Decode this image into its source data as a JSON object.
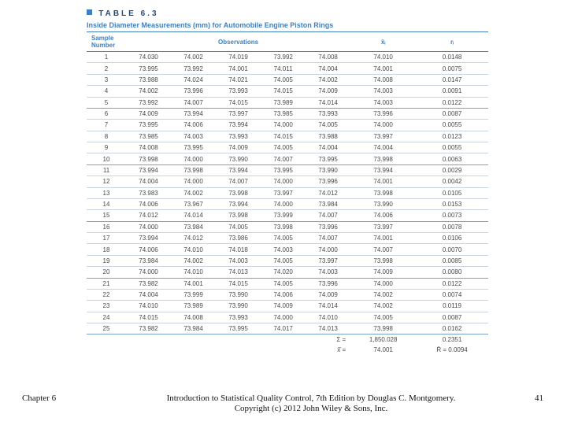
{
  "table": {
    "id": "TABLE 6.3",
    "caption": "Inside Diameter Measurements (mm) for Automobile Engine Piston Rings",
    "headers": {
      "sample": "Sample\nNumber",
      "obs": "Observations",
      "xbar": "x̄ᵢ",
      "r": "rᵢ"
    },
    "rows": [
      [
        1,
        "74.030",
        "74.002",
        "74.019",
        "73.992",
        "74.008",
        "74.010",
        "0.0148"
      ],
      [
        2,
        "73.995",
        "73.992",
        "74.001",
        "74.011",
        "74.004",
        "74.001",
        "0.0075"
      ],
      [
        3,
        "73.988",
        "74.024",
        "74.021",
        "74.005",
        "74.002",
        "74.008",
        "0.0147"
      ],
      [
        4,
        "74.002",
        "73.996",
        "73.993",
        "74.015",
        "74.009",
        "74.003",
        "0.0091"
      ],
      [
        5,
        "73.992",
        "74.007",
        "74.015",
        "73.989",
        "74.014",
        "74.003",
        "0.0122"
      ],
      [
        6,
        "74.009",
        "73.994",
        "73.997",
        "73.985",
        "73.993",
        "73.996",
        "0.0087"
      ],
      [
        7,
        "73.995",
        "74.006",
        "73.994",
        "74.000",
        "74.005",
        "74.000",
        "0.0055"
      ],
      [
        8,
        "73.985",
        "74.003",
        "73.993",
        "74.015",
        "73.988",
        "73.997",
        "0.0123"
      ],
      [
        9,
        "74.008",
        "73.995",
        "74.009",
        "74.005",
        "74.004",
        "74.004",
        "0.0055"
      ],
      [
        10,
        "73.998",
        "74.000",
        "73.990",
        "74.007",
        "73.995",
        "73.998",
        "0.0063"
      ],
      [
        11,
        "73.994",
        "73.998",
        "73.994",
        "73.995",
        "73.990",
        "73.994",
        "0.0029"
      ],
      [
        12,
        "74.004",
        "74.000",
        "74.007",
        "74.000",
        "73.996",
        "74.001",
        "0.0042"
      ],
      [
        13,
        "73.983",
        "74.002",
        "73.998",
        "73.997",
        "74.012",
        "73.998",
        "0.0105"
      ],
      [
        14,
        "74.006",
        "73.967",
        "73.994",
        "74.000",
        "73.984",
        "73.990",
        "0.0153"
      ],
      [
        15,
        "74.012",
        "74.014",
        "73.998",
        "73.999",
        "74.007",
        "74.006",
        "0.0073"
      ],
      [
        16,
        "74.000",
        "73.984",
        "74.005",
        "73.998",
        "73.996",
        "73.997",
        "0.0078"
      ],
      [
        17,
        "73.994",
        "74.012",
        "73.986",
        "74.005",
        "74.007",
        "74.001",
        "0.0106"
      ],
      [
        18,
        "74.006",
        "74.010",
        "74.018",
        "74.003",
        "74.000",
        "74.007",
        "0.0070"
      ],
      [
        19,
        "73.984",
        "74.002",
        "74.003",
        "74.005",
        "73.997",
        "73.998",
        "0.0085"
      ],
      [
        20,
        "74.000",
        "74.010",
        "74.013",
        "74.020",
        "74.003",
        "74.009",
        "0.0080"
      ],
      [
        21,
        "73.982",
        "74.001",
        "74.015",
        "74.005",
        "73.996",
        "74.000",
        "0.0122"
      ],
      [
        22,
        "74.004",
        "73.999",
        "73.990",
        "74.006",
        "74.009",
        "74.002",
        "0.0074"
      ],
      [
        23,
        "74.010",
        "73.989",
        "73.990",
        "74.009",
        "74.014",
        "74.002",
        "0.0119"
      ],
      [
        24,
        "74.015",
        "74.008",
        "73.993",
        "74.000",
        "74.010",
        "74.005",
        "0.0087"
      ],
      [
        25,
        "73.982",
        "73.984",
        "73.995",
        "74.017",
        "74.013",
        "73.998",
        "0.0162"
      ]
    ],
    "summary": {
      "sigma_sym": "Σ =",
      "sigma_xbar": "1,850.028",
      "sigma_r": "0.2351",
      "xbarbar_sym": "x̄̄ =",
      "xbarbar_val": "74.001",
      "rbar_sym": "R̄ =",
      "rbar_val": "0.0094"
    }
  },
  "footer": {
    "chapter": "Chapter 6",
    "credit_line1": "Introduction to Statistical Quality Control, 7th Edition by Douglas C. Montgomery.",
    "credit_line2": "Copyright (c) 2012  John Wiley & Sons, Inc.",
    "page": "41"
  },
  "colors": {
    "accent": "#3f7fbf",
    "rule_light": "#c8d4e2",
    "text": "#4a4a4a"
  }
}
